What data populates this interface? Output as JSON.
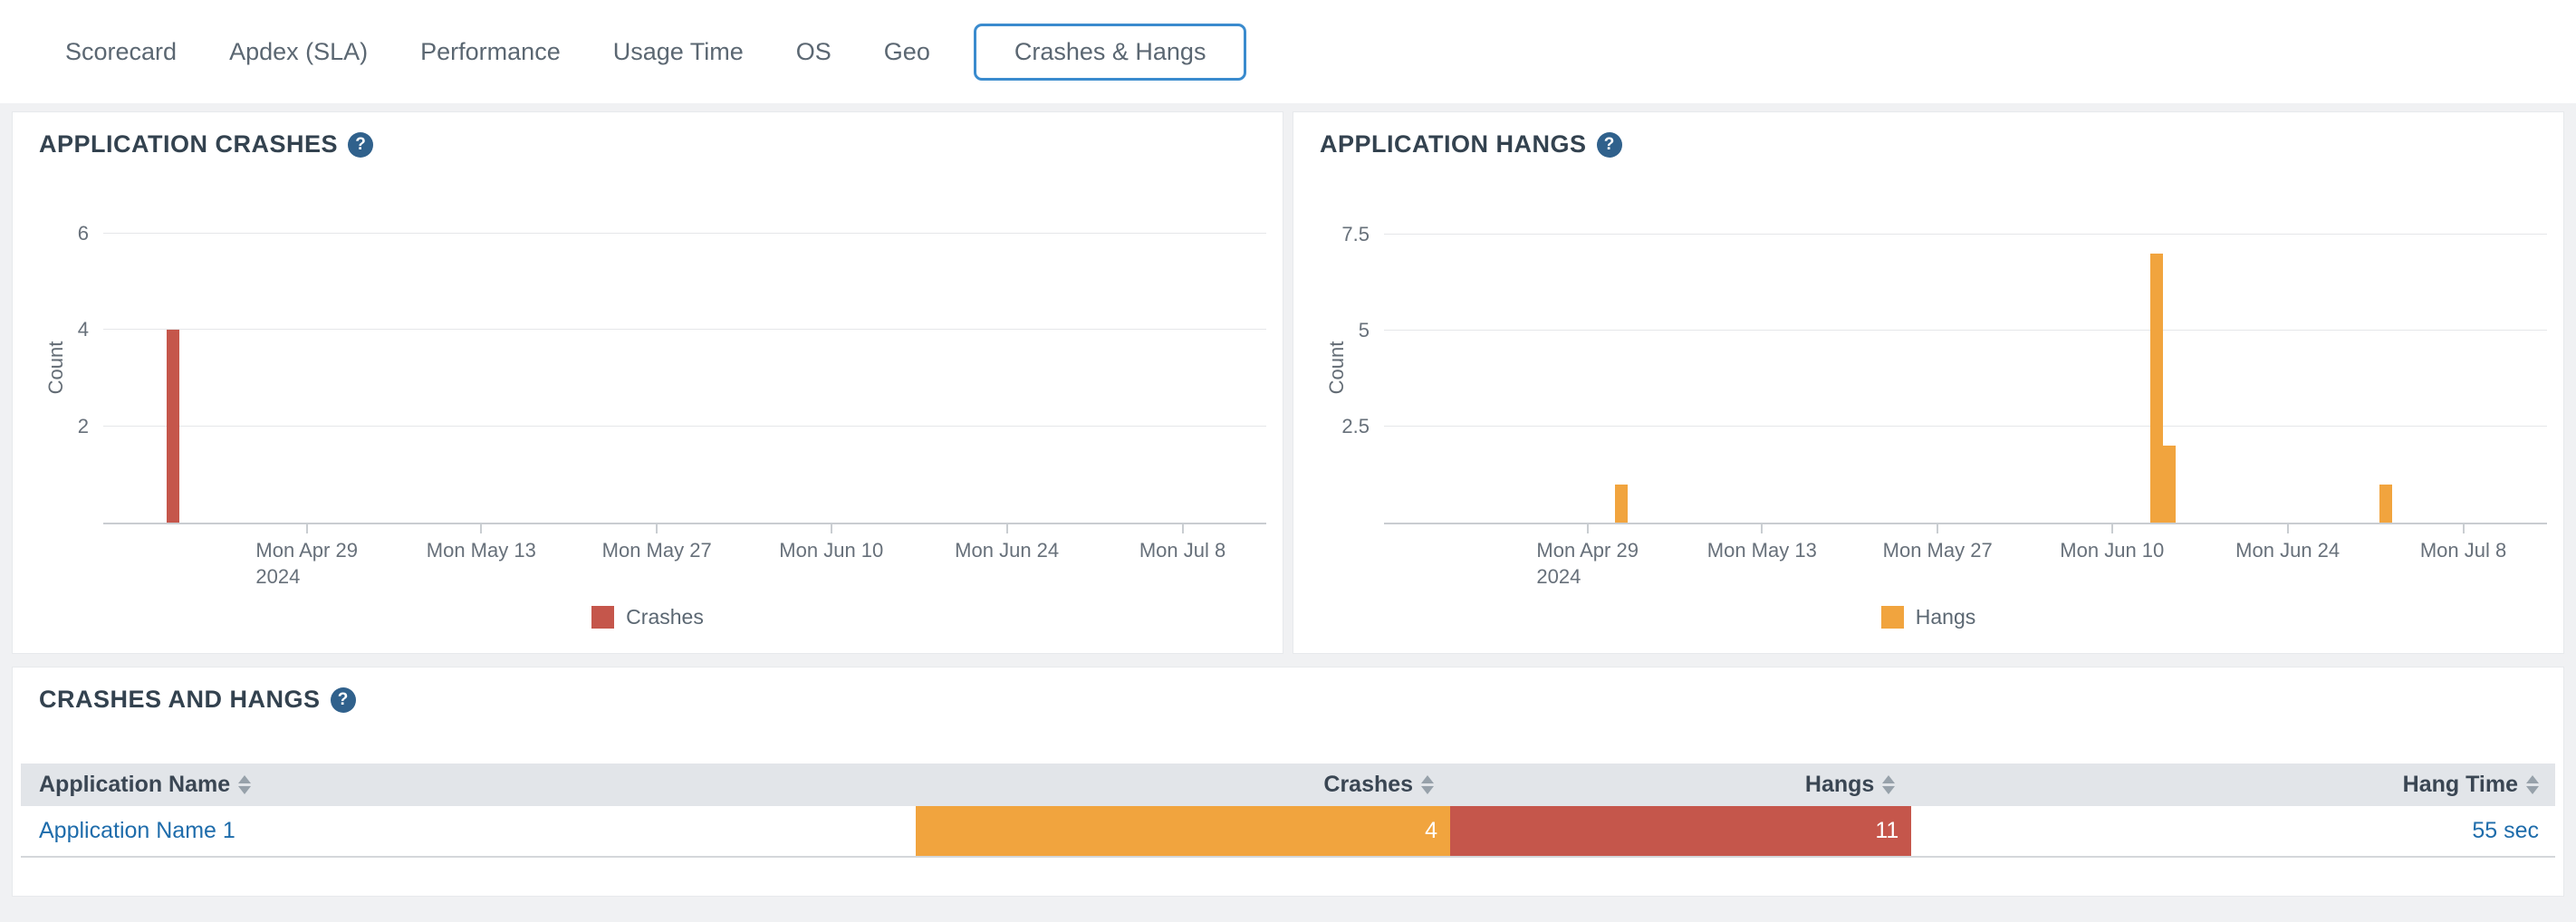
{
  "ui": {
    "help_glyph": "?"
  },
  "colors": {
    "red": "#c5564b",
    "orange": "#f1a43e",
    "selected_tab_border": "#3a8bce",
    "link_blue": "#1e6cab",
    "help_badge": "#30618c"
  },
  "tabs": {
    "items": [
      {
        "label": "Scorecard",
        "selected": false
      },
      {
        "label": "Apdex (SLA)",
        "selected": false
      },
      {
        "label": "Performance",
        "selected": false
      },
      {
        "label": "Usage Time",
        "selected": false
      },
      {
        "label": "OS",
        "selected": false
      },
      {
        "label": "Geo",
        "selected": false
      },
      {
        "label": "Crashes & Hangs",
        "selected": true
      }
    ]
  },
  "chart_data": [
    {
      "type": "bar",
      "title": "APPLICATION CRASHES",
      "xlabel": "",
      "ylabel": "Count",
      "ylim": [
        0,
        6.5
      ],
      "grid": true,
      "legend_position": "bottom",
      "legend": [
        {
          "label": "Crashes",
          "color": "#c5564b"
        }
      ],
      "yticks": [
        {
          "label": "2",
          "value": 2
        },
        {
          "label": "4",
          "value": 4
        },
        {
          "label": "6",
          "value": 6
        }
      ],
      "xticks": [
        {
          "label": "Mon Apr 29",
          "sublabel": "2024",
          "x_pct": 17.5
        },
        {
          "label": "Mon May 13",
          "x_pct": 32.5
        },
        {
          "label": "Mon May 27",
          "x_pct": 47.6
        },
        {
          "label": "Mon Jun 10",
          "x_pct": 62.6
        },
        {
          "label": "Mon Jun 24",
          "x_pct": 77.7
        },
        {
          "label": "Mon Jul 8",
          "x_pct": 92.8
        }
      ],
      "bars": [
        {
          "date_approx": "2024-04-19",
          "x_pct": 6.0,
          "value": 4
        }
      ]
    },
    {
      "type": "bar",
      "title": "APPLICATION HANGS",
      "xlabel": "",
      "ylabel": "Count",
      "ylim": [
        0,
        8.15
      ],
      "grid": true,
      "legend_position": "bottom",
      "legend": [
        {
          "label": "Hangs",
          "color": "#f1a43e"
        }
      ],
      "yticks": [
        {
          "label": "2.5",
          "value": 2.5
        },
        {
          "label": "5",
          "value": 5
        },
        {
          "label": "7.5",
          "value": 7.5
        }
      ],
      "xticks": [
        {
          "label": "Mon Apr 29",
          "sublabel": "2024",
          "x_pct": 17.5
        },
        {
          "label": "Mon May 13",
          "x_pct": 32.5
        },
        {
          "label": "Mon May 27",
          "x_pct": 47.6
        },
        {
          "label": "Mon Jun 10",
          "x_pct": 62.6
        },
        {
          "label": "Mon Jun 24",
          "x_pct": 77.7
        },
        {
          "label": "Mon Jul 8",
          "x_pct": 92.8
        }
      ],
      "bars": [
        {
          "date_approx": "2024-05-02",
          "x_pct": 20.4,
          "value": 1
        },
        {
          "date_approx": "2024-06-13",
          "x_pct": 66.45,
          "value": 7
        },
        {
          "date_approx": "2024-06-14",
          "x_pct": 67.55,
          "value": 2
        },
        {
          "date_approx": "2024-07-02",
          "x_pct": 86.1,
          "value": 1
        }
      ]
    }
  ],
  "table_section": {
    "title": "CRASHES AND HANGS",
    "table": {
      "columns": [
        {
          "label": "Application Name",
          "sortable": true
        },
        {
          "label": "Crashes",
          "sortable": true
        },
        {
          "label": "Hangs",
          "sortable": true
        },
        {
          "label": "Hang Time",
          "sortable": true
        }
      ],
      "rows": [
        {
          "application_name": "Application Name 1",
          "crashes": "4",
          "hangs": "11",
          "hang_time": "55 sec"
        }
      ]
    }
  }
}
